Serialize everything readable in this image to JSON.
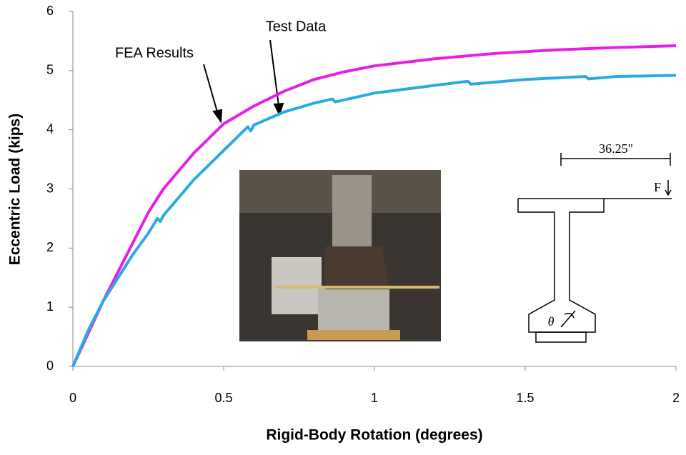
{
  "chart_data": {
    "type": "line",
    "xlabel": "Rigid-Body Rotation (degrees)",
    "ylabel": "Eccentric Load (kips)",
    "series": [
      {
        "name": "FEA Results",
        "color": "#e81ee8",
        "x": [
          0,
          0.05,
          0.1,
          0.15,
          0.2,
          0.25,
          0.3,
          0.4,
          0.5,
          0.6,
          0.7,
          0.8,
          0.9,
          1.0,
          1.2,
          1.4,
          1.6,
          1.8,
          2.0
        ],
        "values": [
          0,
          0.55,
          1.1,
          1.6,
          2.1,
          2.6,
          3.0,
          3.6,
          4.1,
          4.4,
          4.65,
          4.85,
          4.98,
          5.08,
          5.2,
          5.29,
          5.35,
          5.39,
          5.42
        ]
      },
      {
        "name": "Test Data",
        "color": "#29abe2",
        "x": [
          0,
          0.05,
          0.1,
          0.15,
          0.2,
          0.25,
          0.28,
          0.29,
          0.3,
          0.35,
          0.4,
          0.5,
          0.58,
          0.59,
          0.6,
          0.7,
          0.8,
          0.86,
          0.87,
          1.0,
          1.2,
          1.31,
          1.32,
          1.5,
          1.7,
          1.71,
          1.8,
          2.0
        ],
        "values": [
          0,
          0.6,
          1.1,
          1.5,
          1.9,
          2.25,
          2.5,
          2.45,
          2.55,
          2.85,
          3.15,
          3.65,
          4.05,
          3.98,
          4.08,
          4.3,
          4.45,
          4.52,
          4.47,
          4.62,
          4.75,
          4.82,
          4.77,
          4.85,
          4.9,
          4.86,
          4.9,
          4.92
        ]
      }
    ],
    "xlim": [
      0,
      2
    ],
    "xticks": [
      0,
      0.5,
      1,
      1.5,
      2
    ],
    "ylim": [
      0,
      6
    ],
    "yticks": [
      0,
      1,
      2,
      3,
      4,
      5,
      6
    ],
    "grid": false,
    "inset_labels": {
      "dimension": "36.25\"",
      "force": "F",
      "angle": "θ"
    }
  }
}
